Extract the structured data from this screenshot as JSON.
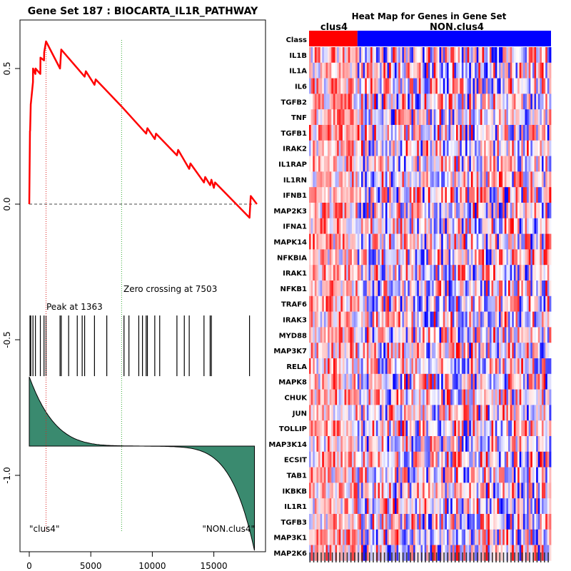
{
  "left_panel": {
    "title": "Gene Set  187 : BIOCARTA_IL1R_PATHWAY",
    "peak_label": "Peak at 1363",
    "zero_label": "Zero crossing at 7503",
    "left_class_label": "\"clus4\"",
    "right_class_label": "\"NON.clus4\"",
    "colors": {
      "es_line": "#ff0000",
      "metric_fill": "#3a8a6f",
      "peak_line": "#dd2222",
      "zero_line": "#33aa33"
    }
  },
  "heatmap": {
    "title": "Heat Map for Genes in Gene Set",
    "class_row_label": "Class",
    "group_a": "clus4",
    "group_b": "NON.clus4",
    "colors": {
      "group_a": "#ff0000",
      "group_b": "#0000ff",
      "high": "#ff0000",
      "low": "#0000ff"
    },
    "genes": [
      "IL1B",
      "IL1A",
      "IL6",
      "TGFB2",
      "TNF",
      "TGFB1",
      "IRAK2",
      "IL1RAP",
      "IL1RN",
      "IFNB1",
      "MAP2K3",
      "IFNA1",
      "MAPK14",
      "NFKBIA",
      "IRAK1",
      "NFKB1",
      "TRAF6",
      "IRAK3",
      "MYD88",
      "MAP3K7",
      "RELA",
      "MAPK8",
      "CHUK",
      "JUN",
      "TOLLIP",
      "MAP3K14",
      "ECSIT",
      "TAB1",
      "IKBKB",
      "IL1R1",
      "TGFB3",
      "MAP3K1",
      "MAP2K6"
    ]
  },
  "chart_data": [
    {
      "type": "line",
      "title": "Gene Set  187 : BIOCARTA_IL1R_PATHWAY",
      "xlabel": "",
      "ylabel": "",
      "xlim": [
        -1000,
        18500
      ],
      "ylim": [
        -1.27,
        0.67
      ],
      "xticks": [
        0,
        5000,
        10000,
        15000
      ],
      "xtick_labels": [
        "0",
        "5000",
        "10000",
        "15000"
      ],
      "yticks": [
        0.5,
        0.0,
        -0.5,
        -1.0
      ],
      "ytick_labels": [
        "0.5",
        "0.0",
        "-0.5",
        "-1.0"
      ],
      "series": [
        {
          "name": "Running enrichment score",
          "x": [
            0,
            60,
            70,
            120,
            130,
            300,
            310,
            500,
            510,
            900,
            910,
            1200,
            1210,
            1363,
            2500,
            2600,
            4500,
            4600,
            5300,
            5400,
            7503,
            9500,
            9600,
            10200,
            10300,
            12000,
            12100,
            13000,
            13100,
            14200,
            14300,
            14700,
            14800,
            15000,
            15100,
            17900,
            18000,
            18500
          ],
          "y": [
            0,
            0.27,
            0.27,
            0.37,
            0.37,
            0.45,
            0.5,
            0.48,
            0.5,
            0.48,
            0.54,
            0.53,
            0.56,
            0.6,
            0.5,
            0.57,
            0.47,
            0.49,
            0.44,
            0.46,
            0.36,
            0.26,
            0.28,
            0.24,
            0.26,
            0.18,
            0.2,
            0.13,
            0.15,
            0.08,
            0.1,
            0.07,
            0.09,
            0.06,
            0.08,
            -0.05,
            0.03,
            0.0
          ]
        }
      ],
      "hits": [
        60,
        120,
        300,
        500,
        900,
        1200,
        1363,
        2500,
        2600,
        3200,
        3900,
        4300,
        4500,
        5300,
        6300,
        7700,
        8100,
        8900,
        9200,
        9500,
        9600,
        10200,
        10600,
        12000,
        12600,
        13000,
        14200,
        14700,
        14800,
        17900
      ],
      "peak_x": 1363,
      "zero_crossing_x": 7503,
      "annotations": [
        "Peak at 1363",
        "Zero crossing at 7503",
        "\"clus4\"",
        "\"NON.clus4\""
      ]
    },
    {
      "type": "heatmap",
      "title": "Heat Map for Genes in Gene Set",
      "rows": [
        "IL1B",
        "IL1A",
        "IL6",
        "TGFB2",
        "TNF",
        "TGFB1",
        "IRAK2",
        "IL1RAP",
        "IL1RN",
        "IFNB1",
        "MAP2K3",
        "IFNA1",
        "MAPK14",
        "NFKBIA",
        "IRAK1",
        "NFKB1",
        "TRAF6",
        "IRAK3",
        "MYD88",
        "MAP3K7",
        "RELA",
        "MAPK8",
        "CHUK",
        "JUN",
        "TOLLIP",
        "MAP3K14",
        "ECSIT",
        "TAB1",
        "IKBKB",
        "IL1R1",
        "TGFB3",
        "MAP3K1",
        "MAP2K6"
      ],
      "column_groups": [
        {
          "name": "clus4",
          "columns": 26
        },
        {
          "name": "NON.clus4",
          "columns": 104
        }
      ],
      "values": "per-sample expression intensities (red = high, blue = low); individual cells not legible",
      "colorscale": [
        "#0000ff",
        "#ffffff",
        "#ff0000"
      ]
    }
  ]
}
